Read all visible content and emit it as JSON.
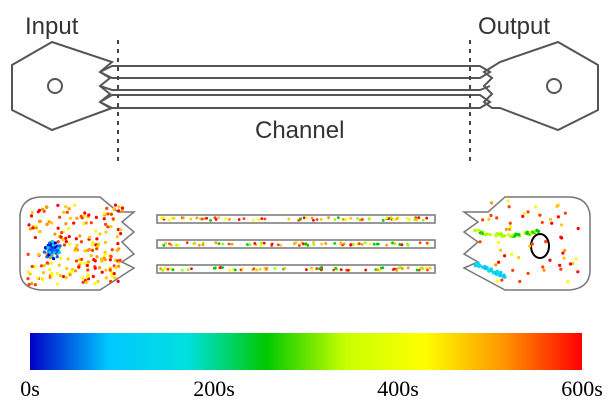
{
  "diagram": {
    "labels": {
      "input": "Input",
      "output": "Output",
      "channel": "Channel"
    }
  },
  "colorbar": {
    "range": [
      0,
      600
    ],
    "colors": [
      "#0000c8",
      "#00c8ff",
      "#00e0e0",
      "#00c800",
      "#c8ff00",
      "#ffff00",
      "#ff9600",
      "#ff0000"
    ],
    "ticks": [
      {
        "value": 0,
        "label": "0s"
      },
      {
        "value": 200,
        "label": "200s"
      },
      {
        "value": 400,
        "label": "400s"
      },
      {
        "value": 600,
        "label": "600s"
      }
    ]
  }
}
